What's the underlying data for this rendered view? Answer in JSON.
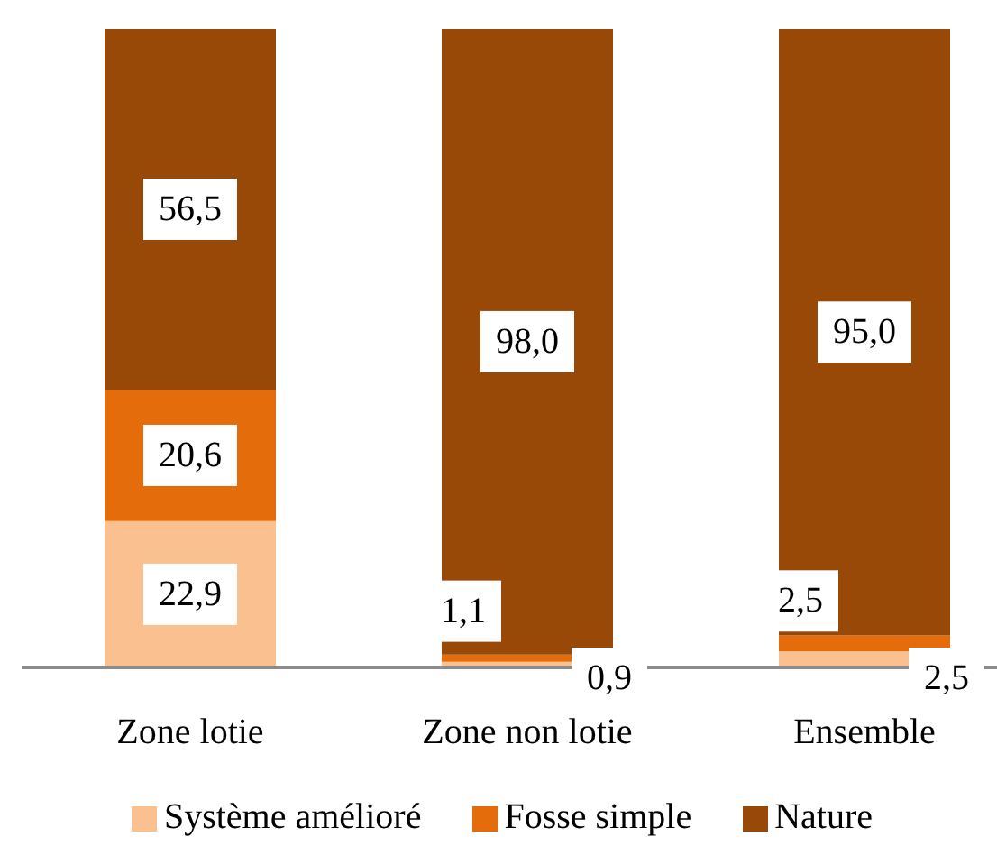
{
  "chart_data": {
    "type": "bar",
    "stacked": true,
    "categories": [
      "Zone lotie",
      "Zone non lotie",
      "Ensemble"
    ],
    "series": [
      {
        "name": "Système amélioré",
        "color": "#fac090",
        "values": [
          22.9,
          0.9,
          2.5
        ],
        "value_labels": [
          "22,9",
          "0,9",
          "2,5"
        ]
      },
      {
        "name": "Fosse simple",
        "color": "#e46c0a",
        "values": [
          20.6,
          1.1,
          2.5
        ],
        "value_labels": [
          "20,6",
          "1,1",
          "2,5"
        ]
      },
      {
        "name": "Nature",
        "color": "#984807",
        "values": [
          56.5,
          98.0,
          95.0
        ],
        "value_labels": [
          "56,5",
          "98,0",
          "95,0"
        ]
      }
    ],
    "ylim": [
      0,
      100
    ],
    "tick_labels": "x",
    "legend": "bottom"
  }
}
